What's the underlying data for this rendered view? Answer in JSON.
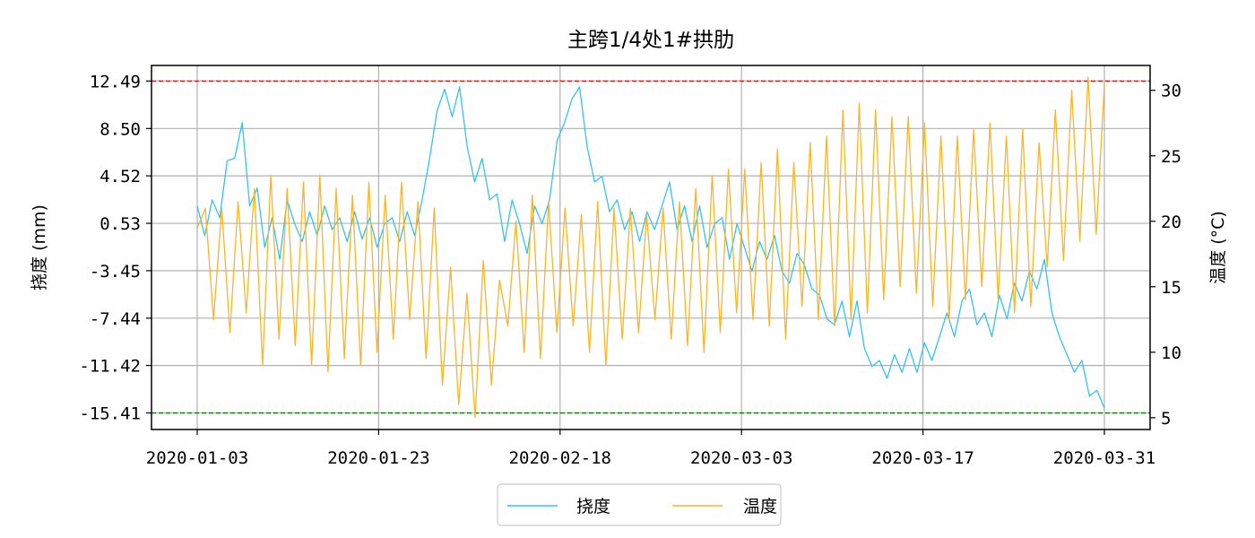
{
  "chart_data": {
    "type": "line",
    "title": "主跨1/4处1#拱肋",
    "xlabel": "",
    "ylabel_left": "挠度 (mm)",
    "ylabel_right": "温度 (°C)",
    "x_tick_labels": [
      "2020-01-03",
      "2020-01-23",
      "2020-02-18",
      "2020-03-03",
      "2020-03-17",
      "2020-03-31"
    ],
    "y_left_ticks": [
      "12.49",
      "8.50",
      "4.52",
      "0.53",
      "-3.45",
      "-7.44",
      "-11.42",
      "-15.41"
    ],
    "y_left_lim": [
      -16.8,
      13.8
    ],
    "y_right_ticks": [
      "5",
      "10",
      "15",
      "20",
      "25",
      "30"
    ],
    "y_right_lim": [
      4.1,
      31.9
    ],
    "thresholds": [
      {
        "value": 12.49,
        "color": "#ff0000"
      },
      {
        "value": -15.41,
        "color": "#008000"
      }
    ],
    "grid": true,
    "legend_position": "bottom-center",
    "series": [
      {
        "name": "挠度",
        "axis": "left",
        "color": "#33c3f0",
        "values": [
          2.0,
          -0.5,
          2.5,
          1.0,
          5.8,
          6.0,
          9.0,
          2.0,
          3.5,
          -1.5,
          1.0,
          -2.5,
          2.5,
          0.5,
          -1.0,
          1.5,
          -0.5,
          2.0,
          0.0,
          1.0,
          -1.0,
          1.5,
          -0.8,
          1.0,
          -1.5,
          0.5,
          1.0,
          -1.0,
          1.5,
          -0.5,
          2.5,
          6.0,
          10.0,
          11.8,
          9.5,
          12.0,
          7.0,
          4.0,
          6.0,
          2.5,
          3.0,
          -1.0,
          2.5,
          0.5,
          -2.0,
          2.0,
          0.5,
          2.5,
          7.5,
          9.0,
          11.0,
          12.0,
          7.0,
          4.0,
          4.5,
          1.5,
          2.5,
          0.0,
          1.5,
          -1.0,
          1.5,
          0.0,
          2.0,
          4.0,
          0.0,
          2.0,
          -1.0,
          2.0,
          -1.5,
          0.5,
          1.0,
          -2.5,
          0.5,
          -1.5,
          -3.5,
          -1.0,
          -2.5,
          -0.5,
          -3.5,
          -4.5,
          -2.0,
          -3.0,
          -5.0,
          -5.5,
          -7.5,
          -8.0,
          -6.0,
          -9.0,
          -6.0,
          -10.0,
          -11.5,
          -11.0,
          -12.5,
          -10.5,
          -12.0,
          -10.0,
          -12.0,
          -9.5,
          -11.0,
          -9.0,
          -7.0,
          -9.0,
          -6.0,
          -5.0,
          -8.0,
          -7.0,
          -9.0,
          -5.5,
          -7.5,
          -4.5,
          -6.0,
          -3.5,
          -5.0,
          -2.5,
          -7.0,
          -9.0,
          -10.5,
          -12.0,
          -11.0,
          -14.0,
          -13.5,
          -15.0
        ]
      },
      {
        "name": "温度",
        "axis": "right",
        "color": "#fbb426",
        "values": [
          19.5,
          21.0,
          12.5,
          21.0,
          11.5,
          21.5,
          13.0,
          22.5,
          9.0,
          23.5,
          11.0,
          22.5,
          10.5,
          23.0,
          9.0,
          23.5,
          8.5,
          22.5,
          9.5,
          22.0,
          9.0,
          23.0,
          10.0,
          22.0,
          11.0,
          23.0,
          12.5,
          21.5,
          9.5,
          21.0,
          7.5,
          16.5,
          6.0,
          14.5,
          5.0,
          17.0,
          7.5,
          15.5,
          12.0,
          20.0,
          10.0,
          22.0,
          9.5,
          21.5,
          11.5,
          21.0,
          12.0,
          20.5,
          10.0,
          21.5,
          9.0,
          21.0,
          11.0,
          21.0,
          11.5,
          20.5,
          12.5,
          21.0,
          11.0,
          21.5,
          10.5,
          22.5,
          10.0,
          23.5,
          11.5,
          24.0,
          13.0,
          24.0,
          12.5,
          24.5,
          12.0,
          25.5,
          11.0,
          24.5,
          13.5,
          26.0,
          12.5,
          26.5,
          12.0,
          28.5,
          12.5,
          29.0,
          13.0,
          28.5,
          14.0,
          28.0,
          15.0,
          28.0,
          14.5,
          27.5,
          13.5,
          26.5,
          12.5,
          26.5,
          14.0,
          27.0,
          15.0,
          27.5,
          14.0,
          26.5,
          13.0,
          27.0,
          13.5,
          26.0,
          16.5,
          28.5,
          17.0,
          30.0,
          18.5,
          31.0,
          19.0,
          30.5
        ]
      }
    ]
  }
}
